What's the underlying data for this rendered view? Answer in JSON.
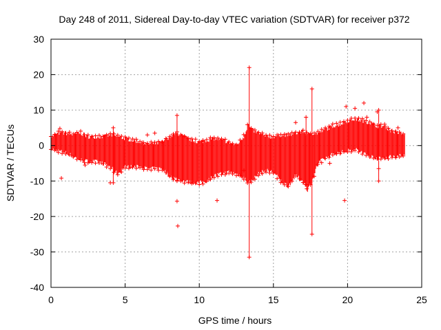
{
  "chart_data": {
    "type": "scatter",
    "title": "Day 248 of 2011, Sidereal Day-to-day VTEC variation (SDTVAR) for receiver p372",
    "xlabel": "GPS time / hours",
    "ylabel": "SDTVAR / TECUs",
    "xlim": [
      0,
      25
    ],
    "ylim": [
      -40,
      30
    ],
    "xticks": [
      0,
      5,
      10,
      15,
      20,
      25
    ],
    "yticks": [
      -40,
      -30,
      -20,
      -10,
      0,
      10,
      20,
      30
    ],
    "xtick_labels": [
      "0",
      "5",
      "10",
      "15",
      "20",
      "25"
    ],
    "ytick_labels": [
      "-40",
      "-30",
      "-20",
      "-10",
      "0",
      "10",
      "20",
      "30"
    ],
    "grid": true,
    "series_color": "#ff0000",
    "marker": "+",
    "envelope": {
      "x": [
        0.0,
        0.5,
        1.0,
        1.5,
        2.0,
        2.5,
        3.0,
        3.5,
        4.0,
        4.5,
        5.0,
        5.5,
        6.0,
        6.5,
        7.0,
        7.5,
        8.0,
        8.5,
        9.0,
        9.5,
        10.0,
        10.5,
        11.0,
        11.5,
        12.0,
        12.5,
        13.0,
        13.3,
        13.5,
        14.0,
        14.5,
        15.0,
        15.5,
        16.0,
        16.5,
        17.0,
        17.3,
        17.6,
        18.0,
        18.5,
        19.0,
        19.5,
        20.0,
        20.5,
        21.0,
        21.5,
        22.0,
        22.5,
        23.0,
        23.5,
        23.9
      ],
      "upper": [
        2.5,
        3.5,
        3.5,
        3.0,
        3.5,
        2.5,
        2.5,
        2.5,
        3.0,
        2.5,
        2.0,
        1.5,
        1.0,
        0.5,
        0.5,
        1.0,
        2.5,
        3.5,
        2.5,
        1.5,
        1.0,
        1.5,
        2.0,
        1.5,
        1.0,
        0.0,
        2.5,
        6.0,
        4.5,
        3.5,
        2.5,
        2.5,
        3.0,
        3.0,
        3.5,
        4.0,
        3.0,
        3.5,
        3.5,
        4.5,
        5.5,
        6.0,
        7.0,
        7.5,
        7.0,
        6.5,
        5.5,
        5.5,
        4.0,
        3.5,
        3.0
      ],
      "lower": [
        -1.0,
        -1.5,
        -2.0,
        -3.0,
        -4.0,
        -4.5,
        -4.5,
        -5.0,
        -6.0,
        -8.0,
        -6.0,
        -6.0,
        -6.0,
        -6.5,
        -6.5,
        -6.5,
        -8.5,
        -9.5,
        -10.0,
        -10.5,
        -10.5,
        -10.0,
        -8.5,
        -8.0,
        -7.5,
        -8.0,
        -9.0,
        -10.5,
        -10.0,
        -8.0,
        -7.0,
        -7.5,
        -10.0,
        -11.5,
        -8.5,
        -10.0,
        -12.5,
        -10.0,
        -5.0,
        -3.5,
        -2.5,
        -2.0,
        -1.5,
        -1.0,
        -2.0,
        -3.0,
        -3.5,
        -3.5,
        -3.0,
        -3.0,
        -2.5
      ]
    },
    "spikes": [
      {
        "x": 13.37,
        "y_min": -31.5,
        "y_max": 22.0
      },
      {
        "x": 17.6,
        "y_min": -25.0,
        "y_max": 16.0
      },
      {
        "x": 4.2,
        "y_min": -10.5,
        "y_max": 5.0
      },
      {
        "x": 8.5,
        "y_min": -10.0,
        "y_max": 8.5
      },
      {
        "x": 22.1,
        "y_min": -10.0,
        "y_max": 10.0
      },
      {
        "x": 17.2,
        "y_min": -11.0,
        "y_max": 8.0
      }
    ],
    "outliers": [
      {
        "x": 0.6,
        "y": 4.8
      },
      {
        "x": 0.7,
        "y": -9.2
      },
      {
        "x": 8.5,
        "y": -15.7
      },
      {
        "x": 8.55,
        "y": -22.7
      },
      {
        "x": 11.2,
        "y": -15.5
      },
      {
        "x": 6.5,
        "y": 3.0
      },
      {
        "x": 7.0,
        "y": 3.5
      },
      {
        "x": 16.5,
        "y": 6.5
      },
      {
        "x": 19.8,
        "y": -15.5
      },
      {
        "x": 19.9,
        "y": 11.0
      },
      {
        "x": 20.5,
        "y": 10.5
      },
      {
        "x": 21.1,
        "y": 12.0
      },
      {
        "x": 21.3,
        "y": 8.0
      },
      {
        "x": 22.0,
        "y": 9.5
      },
      {
        "x": 22.1,
        "y": -6.5
      },
      {
        "x": 23.4,
        "y": 5.0
      },
      {
        "x": 18.8,
        "y": -5.0
      },
      {
        "x": 13.0,
        "y": -7.0
      },
      {
        "x": 2.3,
        "y": -5.5
      },
      {
        "x": 4.0,
        "y": -10.5
      }
    ]
  }
}
